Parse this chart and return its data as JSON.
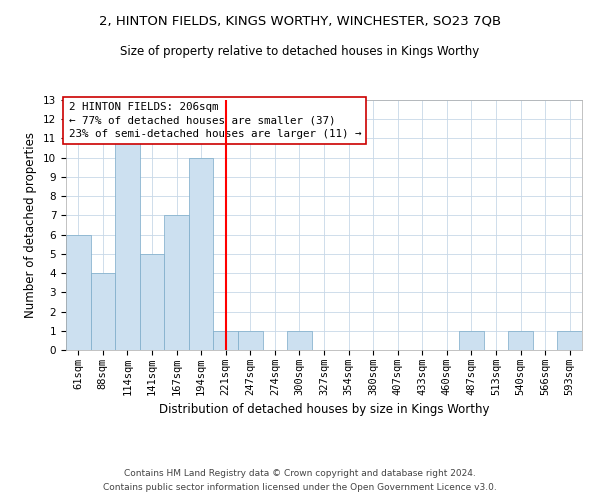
{
  "title1": "2, HINTON FIELDS, KINGS WORTHY, WINCHESTER, SO23 7QB",
  "title2": "Size of property relative to detached houses in Kings Worthy",
  "xlabel": "Distribution of detached houses by size in Kings Worthy",
  "ylabel": "Number of detached properties",
  "categories": [
    "61sqm",
    "88sqm",
    "114sqm",
    "141sqm",
    "167sqm",
    "194sqm",
    "221sqm",
    "247sqm",
    "274sqm",
    "300sqm",
    "327sqm",
    "354sqm",
    "380sqm",
    "407sqm",
    "433sqm",
    "460sqm",
    "487sqm",
    "513sqm",
    "540sqm",
    "566sqm",
    "593sqm"
  ],
  "values": [
    6,
    4,
    11,
    5,
    7,
    10,
    1,
    1,
    0,
    1,
    0,
    0,
    0,
    0,
    0,
    0,
    1,
    0,
    1,
    0,
    1
  ],
  "bar_color": "#cce0f0",
  "bar_edge_color": "#7aaac8",
  "red_line_x": 6,
  "ylim": [
    0,
    13
  ],
  "yticks": [
    0,
    1,
    2,
    3,
    4,
    5,
    6,
    7,
    8,
    9,
    10,
    11,
    12,
    13
  ],
  "annotation_title": "2 HINTON FIELDS: 206sqm",
  "annotation_line1": "← 77% of detached houses are smaller (37)",
  "annotation_line2": "23% of semi-detached houses are larger (11) →",
  "annotation_box_color": "#ffffff",
  "annotation_box_edge_color": "#cc0000",
  "footer1": "Contains HM Land Registry data © Crown copyright and database right 2024.",
  "footer2": "Contains public sector information licensed under the Open Government Licence v3.0.",
  "background_color": "#ffffff",
  "grid_color": "#c8d8e8",
  "title1_fontsize": 9.5,
  "title2_fontsize": 8.5,
  "xlabel_fontsize": 8.5,
  "ylabel_fontsize": 8.5,
  "tick_fontsize": 7.5,
  "annotation_fontsize": 7.8,
  "footer_fontsize": 6.5
}
